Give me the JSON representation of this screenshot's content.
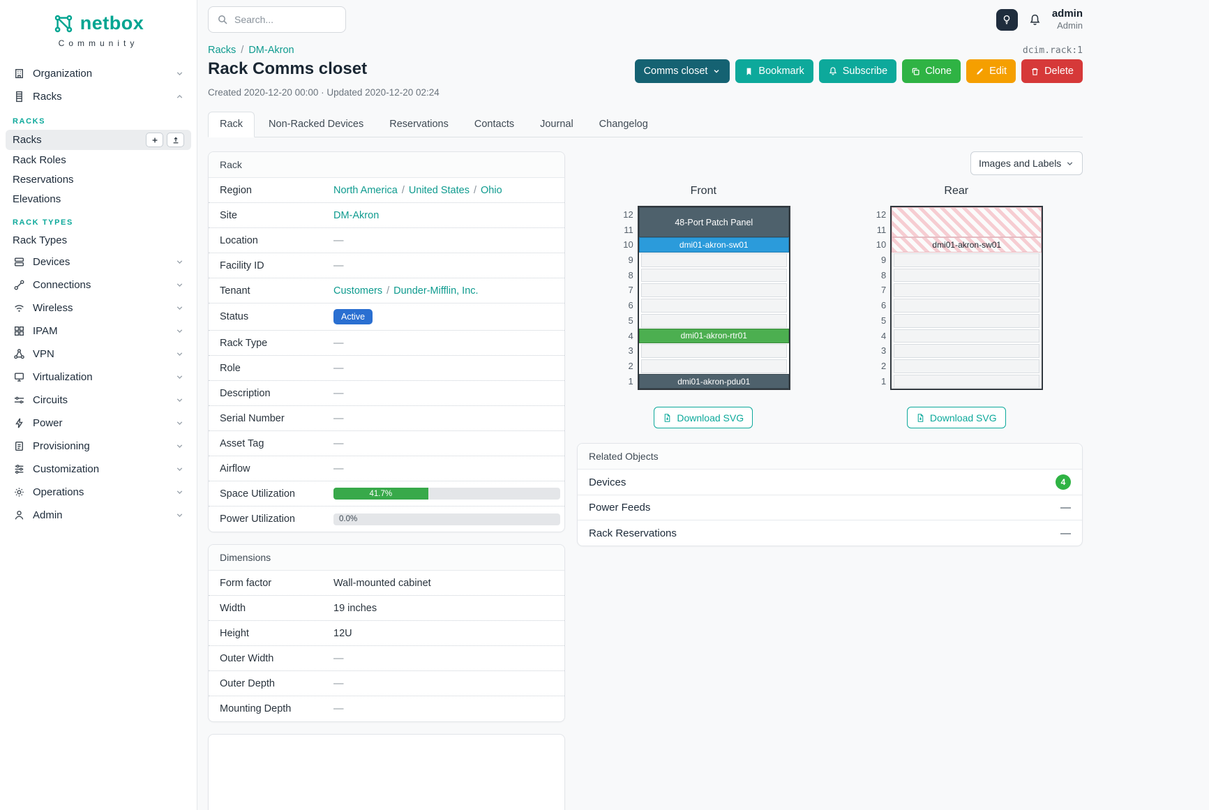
{
  "misc": {
    "slash": "/"
  },
  "colors": {
    "brand_teal": "#00a591",
    "link_teal": "#0f9b8f",
    "button_dark_teal": "#156272",
    "button_teal": "#0da99b",
    "button_green": "#2fb344",
    "button_orange": "#f59f00",
    "button_red": "#d63939",
    "status_active_bg": "#2a6fd1",
    "progress_green": "#38a94a",
    "device_slate": "#4e616c",
    "device_blue": "#2b9bdb",
    "device_green": "#4caf50"
  },
  "brand": {
    "name": "netbox",
    "tagline": "Community"
  },
  "topbar": {
    "search_placeholder": "Search...",
    "user_name": "admin",
    "user_role": "Admin"
  },
  "sidebar": {
    "items": [
      {
        "label": "Organization",
        "icon": "building-icon"
      },
      {
        "label": "Racks",
        "icon": "rack-icon"
      },
      {
        "label": "Devices",
        "icon": "server-icon"
      },
      {
        "label": "Connections",
        "icon": "cable-icon"
      },
      {
        "label": "Wireless",
        "icon": "wifi-icon"
      },
      {
        "label": "IPAM",
        "icon": "grid-icon"
      },
      {
        "label": "VPN",
        "icon": "network-icon"
      },
      {
        "label": "Virtualization",
        "icon": "monitor-icon"
      },
      {
        "label": "Circuits",
        "icon": "circuit-icon"
      },
      {
        "label": "Power",
        "icon": "bolt-icon"
      },
      {
        "label": "Provisioning",
        "icon": "clipboard-icon"
      },
      {
        "label": "Customization",
        "icon": "sliders-icon"
      },
      {
        "label": "Operations",
        "icon": "gear-icon"
      },
      {
        "label": "Admin",
        "icon": "user-icon"
      }
    ],
    "racks_menu": {
      "group1_title": "RACKS",
      "items1": [
        "Racks",
        "Rack Roles",
        "Reservations",
        "Elevations"
      ],
      "group2_title": "RACK TYPES",
      "items2": [
        "Rack Types"
      ]
    }
  },
  "breadcrumb": {
    "root": "Racks",
    "current": "DM-Akron",
    "object_ref": "dcim.rack:1"
  },
  "page": {
    "title": "Rack Comms closet",
    "meta": "Created 2020-12-20 00:00 · Updated 2020-12-20 02:24",
    "actions": {
      "primary_dropdown": "Comms closet",
      "bookmark": "Bookmark",
      "subscribe": "Subscribe",
      "clone": "Clone",
      "edit": "Edit",
      "delete": "Delete"
    },
    "tabs": [
      {
        "label": "Rack",
        "active": true
      },
      {
        "label": "Non-Racked Devices",
        "active": false
      },
      {
        "label": "Reservations",
        "active": false
      },
      {
        "label": "Contacts",
        "active": false
      },
      {
        "label": "Journal",
        "active": false
      },
      {
        "label": "Changelog",
        "active": false
      }
    ]
  },
  "rack_card": {
    "title": "Rack",
    "rows": {
      "region": {
        "label": "Region",
        "links": [
          "North America",
          "United States",
          "Ohio"
        ]
      },
      "site": {
        "label": "Site",
        "link": "DM-Akron"
      },
      "location": {
        "label": "Location",
        "value": "—"
      },
      "facility_id": {
        "label": "Facility ID",
        "value": "—"
      },
      "tenant": {
        "label": "Tenant",
        "links": [
          "Customers",
          "Dunder-Mifflin, Inc."
        ]
      },
      "status": {
        "label": "Status",
        "badge": "Active"
      },
      "rack_type": {
        "label": "Rack Type",
        "value": "—"
      },
      "role": {
        "label": "Role",
        "value": "—"
      },
      "description": {
        "label": "Description",
        "value": "—"
      },
      "serial": {
        "label": "Serial Number",
        "value": "—"
      },
      "asset_tag": {
        "label": "Asset Tag",
        "value": "—"
      },
      "airflow": {
        "label": "Airflow",
        "value": "—"
      },
      "space_util": {
        "label": "Space Utilization",
        "value": "41.7%",
        "percent": 41.7
      },
      "power_util": {
        "label": "Power Utilization",
        "value": "0.0%",
        "percent": 0
      }
    }
  },
  "dimensions_card": {
    "title": "Dimensions",
    "rows": {
      "form_factor": {
        "label": "Form factor",
        "value": "Wall-mounted cabinet"
      },
      "width": {
        "label": "Width",
        "value": "19 inches"
      },
      "height": {
        "label": "Height",
        "value": "12U"
      },
      "outer_width": {
        "label": "Outer Width",
        "value": "—"
      },
      "outer_depth": {
        "label": "Outer Depth",
        "value": "—"
      },
      "mounting_depth": {
        "label": "Mounting Depth",
        "value": "—"
      }
    }
  },
  "elevation": {
    "view_toggle": "Images and Labels",
    "download_label": "Download SVG",
    "units": [
      "12",
      "11",
      "10",
      "9",
      "8",
      "7",
      "6",
      "5",
      "4",
      "3",
      "2",
      "1"
    ],
    "front": {
      "title": "Front",
      "devices": [
        {
          "name": "48-Port Patch Panel",
          "units": "12-11",
          "color": "slate"
        },
        {
          "name": "dmi01-akron-sw01",
          "units": "10",
          "color": "blue"
        },
        {
          "name": "dmi01-akron-rtr01",
          "units": "4",
          "color": "green"
        },
        {
          "name": "dmi01-akron-pdu01",
          "units": "1",
          "color": "slate"
        }
      ]
    },
    "rear": {
      "title": "Rear",
      "occupied_units": "12-10",
      "occupied_label": "dmi01-akron-sw01"
    }
  },
  "related_objects": {
    "title": "Related Objects",
    "rows": [
      {
        "label": "Devices",
        "count": "4"
      },
      {
        "label": "Power Feeds",
        "value": "—"
      },
      {
        "label": "Rack Reservations",
        "value": "—"
      }
    ]
  }
}
